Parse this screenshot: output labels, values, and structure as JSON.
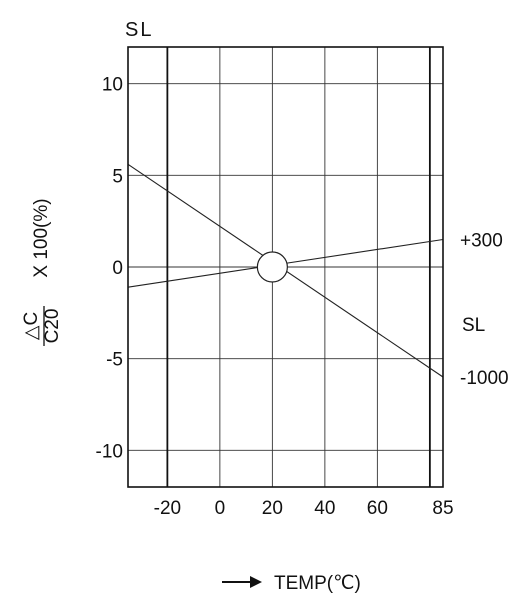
{
  "chart_data": {
    "type": "line",
    "title": "SL",
    "xlabel": "TEMP(℃)",
    "ylabel_numerator": "△C",
    "ylabel_denominator": "C20",
    "ylabel_suffix": "X  100(%)",
    "xlim": [
      -35,
      85
    ],
    "ylim": [
      -12,
      12
    ],
    "x_tick_values": [
      -20,
      0,
      20,
      40,
      60,
      85
    ],
    "x_tick_labels": [
      "-20",
      "0",
      "20",
      "40",
      "60",
      "85"
    ],
    "y_tick_values": [
      10,
      5,
      0,
      -5,
      -10
    ],
    "y_tick_labels": [
      "10",
      "5",
      "0",
      "-5",
      "-10"
    ],
    "vertical_gridlines": [
      -20,
      0,
      20,
      40,
      60,
      80
    ],
    "bold_vertical_gridlines": [
      -20,
      80
    ],
    "horizontal_gridlines": [
      10,
      5,
      0,
      -5,
      -10
    ],
    "grid": true,
    "reference_point": {
      "x": 20,
      "y": 0
    },
    "series": [
      {
        "name": "+300",
        "x": [
          -35,
          85
        ],
        "y": [
          -1.1,
          1.5
        ]
      },
      {
        "name": "-1000",
        "x": [
          -35,
          85
        ],
        "y": [
          5.6,
          -6.0
        ]
      }
    ],
    "side_label": "SL"
  }
}
